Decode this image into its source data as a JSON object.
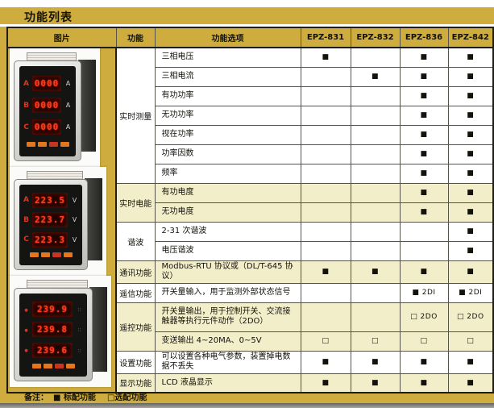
{
  "page": {
    "title": "功能列表",
    "note_label": "备注：",
    "note_standard": "■ 标配功能",
    "note_optional": "□选配功能"
  },
  "colors": {
    "gold": "#cead3e",
    "highlight_row": "#f3eeca",
    "table_line": "#55534a",
    "lcd_red": "#ff3b22",
    "button_orange": "#e5761c"
  },
  "table": {
    "headers": [
      "图片",
      "功能",
      "功能选项",
      "EPZ-831",
      "EPZ-832",
      "EPZ-836",
      "EPZ-842"
    ],
    "legend": {
      "standard": "■",
      "optional": "□"
    },
    "groups": [
      {
        "function": "实时测量",
        "highlight": false,
        "rows": [
          {
            "option": "三相电压",
            "marks": [
              "■",
              "",
              "■",
              "■"
            ]
          },
          {
            "option": "三相电流",
            "marks": [
              "",
              "■",
              "■",
              "■"
            ]
          },
          {
            "option": "有功功率",
            "marks": [
              "",
              "",
              "■",
              "■"
            ]
          },
          {
            "option": "无功功率",
            "marks": [
              "",
              "",
              "■",
              "■"
            ]
          },
          {
            "option": "视在功率",
            "marks": [
              "",
              "",
              "■",
              "■"
            ]
          },
          {
            "option": "功率因数",
            "marks": [
              "",
              "",
              "■",
              "■"
            ]
          },
          {
            "option": "频率",
            "marks": [
              "",
              "",
              "■",
              "■"
            ]
          }
        ]
      },
      {
        "function": "实时电能",
        "highlight": true,
        "rows": [
          {
            "option": "有功电度",
            "marks": [
              "",
              "",
              "■",
              "■"
            ]
          },
          {
            "option": "无功电度",
            "marks": [
              "",
              "",
              "■",
              "■"
            ]
          }
        ]
      },
      {
        "function": "谐波",
        "highlight": false,
        "rows": [
          {
            "option": "2-31 次谐波",
            "marks": [
              "",
              "",
              "",
              "■"
            ]
          },
          {
            "option": "电压谐波",
            "marks": [
              "",
              "",
              "",
              "■"
            ]
          }
        ]
      },
      {
        "function": "通讯功能",
        "highlight": true,
        "rows": [
          {
            "option": "Modbus-RTU 协议或（DL/T-645 协议）",
            "marks": [
              "■",
              "■",
              "■",
              "■"
            ]
          }
        ]
      },
      {
        "function": "遥信功能",
        "highlight": false,
        "rows": [
          {
            "option": "开关量输入，用于监测外部状态信号",
            "marks": [
              "",
              "",
              "■ 2DI",
              "■ 2DI"
            ]
          }
        ]
      },
      {
        "function": "遥控功能",
        "highlight": true,
        "rows": [
          {
            "option": "开关量输出，用于控制开关、交流接触器等执行元件动作（2DO）",
            "marks": [
              "",
              "",
              "□ 2DO",
              "□ 2DO"
            ],
            "tall": true
          },
          {
            "option": "变送输出 4~20MA、0~5V",
            "marks": [
              "□",
              "□",
              "□",
              "□"
            ]
          }
        ]
      },
      {
        "function": "设置功能",
        "highlight": false,
        "rows": [
          {
            "option": "可以设置各种电气参数，装置掉电数据不丢失",
            "marks": [
              "■",
              "■",
              "■",
              "■"
            ]
          }
        ]
      },
      {
        "function": "显示功能",
        "highlight": true,
        "rows": [
          {
            "option": "LCD 液晶显示",
            "marks": [
              "■",
              "■",
              "■",
              "■"
            ]
          }
        ]
      }
    ]
  },
  "meters": [
    {
      "phases": [
        "A",
        "B",
        "C"
      ],
      "values": [
        "0000",
        "0000",
        "0000"
      ],
      "unit": "A"
    },
    {
      "phases": [
        "A",
        "B",
        "C"
      ],
      "values": [
        "223.5",
        "223.7",
        "223.3"
      ],
      "unit": "V"
    },
    {
      "phases": [
        "",
        "",
        ""
      ],
      "values": [
        "239.9",
        "239.8",
        "239.6"
      ],
      "unit": ""
    }
  ]
}
